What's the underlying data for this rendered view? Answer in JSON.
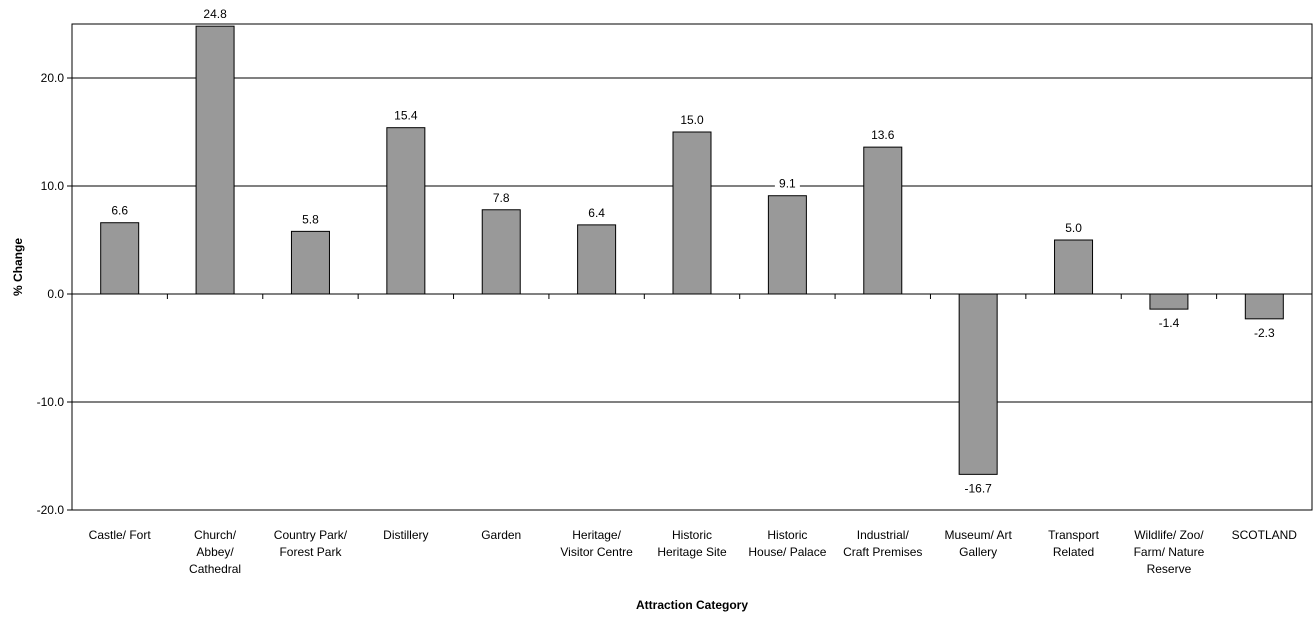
{
  "chart_data": {
    "type": "bar",
    "categories": [
      [
        "Castle/ Fort"
      ],
      [
        "Church/",
        "Abbey/",
        "Cathedral"
      ],
      [
        "Country Park/",
        "Forest Park"
      ],
      [
        "Distillery"
      ],
      [
        "Garden"
      ],
      [
        "Heritage/",
        "Visitor Centre"
      ],
      [
        "Historic",
        "Heritage Site"
      ],
      [
        "Historic",
        "House/ Palace"
      ],
      [
        "Industrial/",
        "Craft Premises"
      ],
      [
        "Museum/ Art",
        "Gallery"
      ],
      [
        "Transport",
        "Related"
      ],
      [
        "Wildlife/ Zoo/",
        "Farm/ Nature",
        "Reserve"
      ],
      [
        "SCOTLAND"
      ]
    ],
    "values": [
      6.6,
      24.8,
      5.8,
      15.4,
      7.8,
      6.4,
      15.0,
      9.1,
      13.6,
      -16.7,
      5.0,
      -1.4,
      -2.3
    ],
    "value_labels": [
      "6.6",
      "24.8",
      "5.8",
      "15.4",
      "7.8",
      "6.4",
      "15.0",
      "9.1",
      "13.6",
      "-16.7",
      "5.0",
      "-1.4",
      "-2.3"
    ],
    "xlabel": "Attraction Category",
    "ylabel": "% Change",
    "ylim": [
      -20,
      25
    ],
    "yticks": [
      20,
      10,
      0,
      -10,
      -20
    ],
    "ytick_labels": [
      "20.0",
      "10.0",
      "0.0",
      "-10.0",
      "-20.0"
    ],
    "grid": true,
    "colors": {
      "bar_fill": "#999999",
      "bar_stroke": "#000000",
      "gridline": "#000000"
    }
  }
}
